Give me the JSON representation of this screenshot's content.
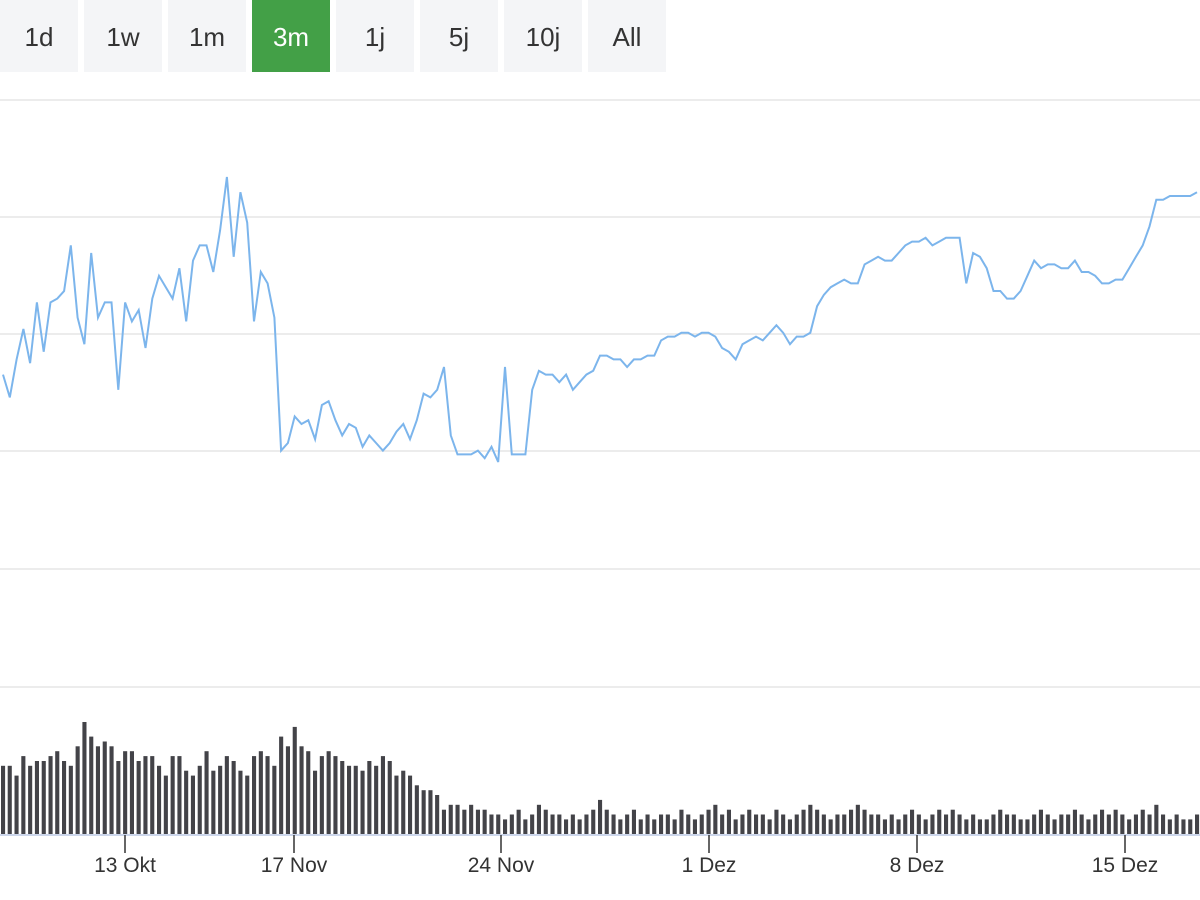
{
  "range_buttons": [
    {
      "label": "1d",
      "active": false
    },
    {
      "label": "1w",
      "active": false
    },
    {
      "label": "1m",
      "active": false
    },
    {
      "label": "3m",
      "active": true
    },
    {
      "label": "1j",
      "active": false
    },
    {
      "label": "5j",
      "active": false
    },
    {
      "label": "10j",
      "active": false
    },
    {
      "label": "All",
      "active": false
    }
  ],
  "colors": {
    "line": "#7cb5ec",
    "volume_bar": "#434348",
    "active_button": "#43a047",
    "grid": "#e6e6e6"
  },
  "chart_data": {
    "type": "line",
    "title": "",
    "xlabel": "",
    "ylabel": "",
    "grid": true,
    "legend": "none",
    "x_ticks": [
      "13 Okt",
      "17 Nov",
      "24 Nov",
      "1 Dez",
      "8 Dez",
      "15 Dez"
    ],
    "ylim": [
      0,
      100
    ],
    "series": [
      {
        "values": [
          48,
          42,
          52,
          60,
          51,
          67,
          54,
          67,
          68,
          70,
          82,
          63,
          56,
          80,
          63,
          67,
          67,
          44,
          67,
          62,
          65,
          55,
          68,
          74,
          71,
          68,
          76,
          62,
          78,
          82,
          82,
          75,
          86,
          100,
          79,
          96,
          88,
          62,
          75,
          72,
          63,
          28,
          30,
          37,
          35,
          36,
          31,
          40,
          41,
          36,
          32,
          35,
          34,
          29,
          32,
          30,
          28,
          30,
          33,
          35,
          31,
          36,
          43,
          42,
          44,
          50,
          32,
          27,
          27,
          27,
          28,
          26,
          29,
          25,
          50,
          27,
          27,
          27,
          44,
          49,
          48,
          48,
          46,
          48,
          44,
          46,
          48,
          49,
          53,
          53,
          52,
          52,
          50,
          52,
          52,
          53,
          53,
          57,
          58,
          58,
          59,
          59,
          58,
          59,
          59,
          58,
          55,
          54,
          52,
          56,
          57,
          58,
          57,
          59,
          61,
          59,
          56,
          58,
          58,
          59,
          66,
          69,
          71,
          72,
          73,
          72,
          72,
          77,
          78,
          79,
          78,
          78,
          80,
          82,
          83,
          83,
          84,
          82,
          83,
          84,
          84,
          84,
          72,
          80,
          79,
          76,
          70,
          70,
          68,
          68,
          70,
          74,
          78,
          76,
          77,
          77,
          76,
          76,
          78,
          75,
          75,
          74,
          72,
          72,
          73,
          73,
          76,
          79,
          82,
          87,
          94,
          94,
          95,
          95,
          95,
          95,
          96
        ]
      }
    ],
    "volume": [
      14,
      14,
      12,
      16,
      14,
      15,
      15,
      16,
      17,
      15,
      14,
      18,
      23,
      20,
      18,
      19,
      18,
      15,
      17,
      17,
      15,
      16,
      16,
      14,
      12,
      16,
      16,
      13,
      12,
      14,
      17,
      13,
      14,
      16,
      15,
      13,
      12,
      16,
      17,
      16,
      14,
      20,
      18,
      22,
      18,
      17,
      13,
      16,
      17,
      16,
      15,
      14,
      14,
      13,
      15,
      14,
      16,
      15,
      12,
      13,
      12,
      10,
      9,
      9,
      8,
      5,
      6,
      6,
      5,
      6,
      5,
      5,
      4,
      4,
      3,
      4,
      5,
      3,
      4,
      6,
      5,
      4,
      4,
      3,
      4,
      3,
      4,
      5,
      7,
      5,
      4,
      3,
      4,
      5,
      3,
      4,
      3,
      4,
      4,
      3,
      5,
      4,
      3,
      4,
      5,
      6,
      4,
      5,
      3,
      4,
      5,
      4,
      4,
      3,
      5,
      4,
      3,
      4,
      5,
      6,
      5,
      4,
      3,
      4,
      4,
      5,
      6,
      5,
      4,
      4,
      3,
      4,
      3,
      4,
      5,
      4,
      3,
      4,
      5,
      4,
      5,
      4,
      3,
      4,
      3,
      3,
      4,
      5,
      4,
      4,
      3,
      3,
      4,
      5,
      4,
      3,
      4,
      4,
      5,
      4,
      3,
      4,
      5,
      4,
      5,
      4,
      3,
      4,
      5,
      4,
      6,
      4,
      3,
      4,
      3,
      3,
      4
    ]
  }
}
